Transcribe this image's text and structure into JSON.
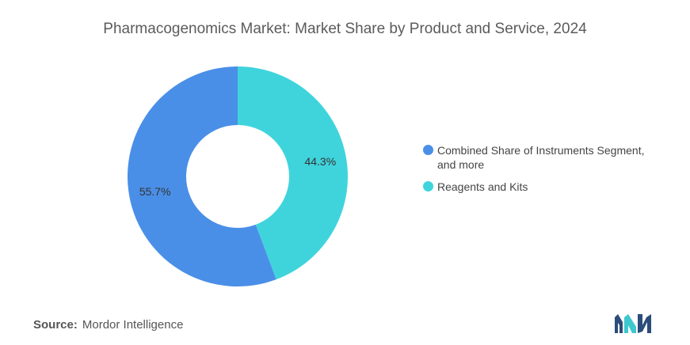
{
  "title": "Pharmacogenomics Market: Market Share by Product and Service, 2024",
  "chart_data": {
    "type": "pie",
    "variant": "donut",
    "title": "Pharmacogenomics Market: Market Share by Product and Service, 2024",
    "slices": [
      {
        "label": "Reagents and Kits",
        "value": 44.3,
        "display": "44.3%",
        "color": "#3fd4dc"
      },
      {
        "label": "Combined Share of Instruments Segment, and more",
        "value": 55.7,
        "display": "55.7%",
        "color": "#4a8fe7"
      }
    ],
    "legend_position": "right"
  },
  "legend": [
    {
      "label": "Combined Share of Instruments Segment, and more",
      "color": "#4a8fe7"
    },
    {
      "label": "Reagents and Kits",
      "color": "#3fd4dc"
    }
  ],
  "source": {
    "key": "Source:",
    "value": "Mordor Intelligence"
  },
  "logo": {
    "icon": "mordor-intelligence-logo-icon",
    "colors": [
      "#2b4d7a",
      "#3fc7cf"
    ]
  }
}
